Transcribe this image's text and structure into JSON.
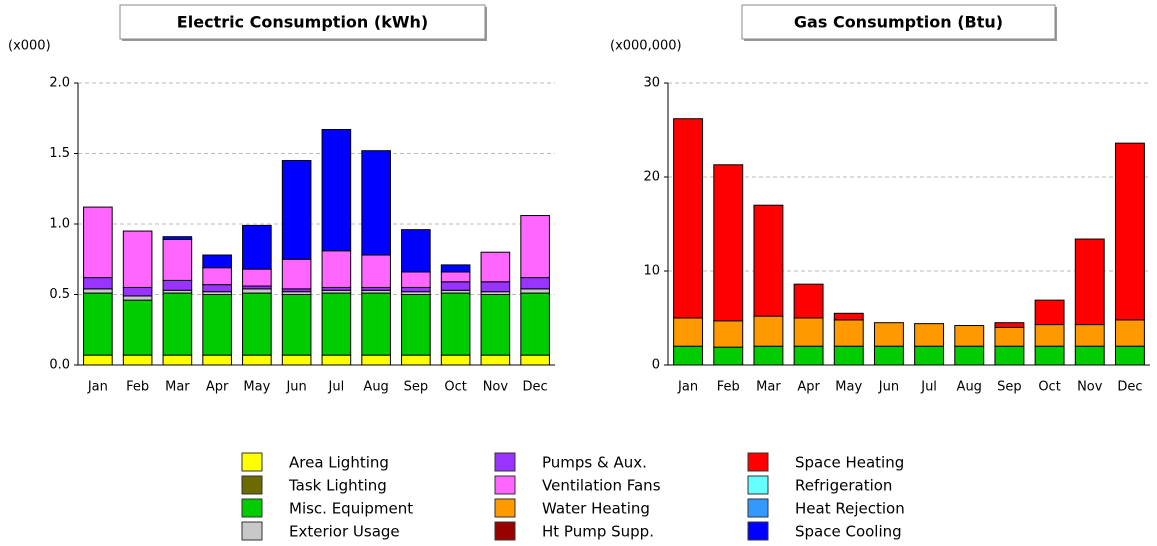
{
  "chart_data": [
    {
      "type": "bar",
      "stacked": true,
      "title": "Electric Consumption (kWh)",
      "unit_label": "(x000)",
      "categories": [
        "Jan",
        "Feb",
        "Mar",
        "Apr",
        "May",
        "Jun",
        "Jul",
        "Aug",
        "Sep",
        "Oct",
        "Nov",
        "Dec"
      ],
      "ylim": [
        0,
        2
      ],
      "yticks": [
        {
          "value": 0,
          "label": "0.0"
        },
        0.5,
        {
          "value": 1,
          "label": "1.0"
        },
        1.5,
        {
          "value": 2,
          "label": "2.0"
        }
      ],
      "grid": true,
      "series": [
        {
          "name": "Area Lighting",
          "values": [
            0.07,
            0.07,
            0.07,
            0.07,
            0.07,
            0.07,
            0.07,
            0.07,
            0.07,
            0.07,
            0.07,
            0.07
          ]
        },
        {
          "name": "Misc. Equipment",
          "values": [
            0.44,
            0.39,
            0.44,
            0.43,
            0.44,
            0.43,
            0.44,
            0.44,
            0.43,
            0.44,
            0.43,
            0.44
          ]
        },
        {
          "name": "Exterior Usage",
          "values": [
            0.03,
            0.03,
            0.02,
            0.02,
            0.03,
            0.02,
            0.02,
            0.02,
            0.02,
            0.02,
            0.02,
            0.03
          ]
        },
        {
          "name": "Pumps & Aux.",
          "values": [
            0.08,
            0.06,
            0.07,
            0.05,
            0.02,
            0.02,
            0.02,
            0.02,
            0.03,
            0.06,
            0.07,
            0.08
          ]
        },
        {
          "name": "Ventilation Fans",
          "values": [
            0.5,
            0.4,
            0.29,
            0.12,
            0.12,
            0.21,
            0.26,
            0.23,
            0.11,
            0.07,
            0.21,
            0.44
          ]
        },
        {
          "name": "Space Cooling",
          "values": [
            0,
            0,
            0.02,
            0.09,
            0.31,
            0.7,
            0.86,
            0.74,
            0.3,
            0.05,
            0,
            0
          ]
        }
      ]
    },
    {
      "type": "bar",
      "stacked": true,
      "title": "Gas Consumption (Btu)",
      "unit_label": "(x000,000)",
      "categories": [
        "Jan",
        "Feb",
        "Mar",
        "Apr",
        "May",
        "Jun",
        "Jul",
        "Aug",
        "Sep",
        "Oct",
        "Nov",
        "Dec"
      ],
      "ylim": [
        0,
        30
      ],
      "yticks": [
        0,
        10,
        20,
        30
      ],
      "grid": true,
      "series": [
        {
          "name": "Misc. Equipment",
          "values": [
            2.0,
            1.9,
            2.0,
            2.0,
            2.0,
            2.0,
            2.0,
            2.0,
            2.0,
            2.0,
            2.0,
            2.0
          ]
        },
        {
          "name": "Water Heating",
          "values": [
            3.0,
            2.8,
            3.2,
            3.0,
            2.8,
            2.5,
            2.4,
            2.2,
            2.0,
            2.3,
            2.3,
            2.8
          ]
        },
        {
          "name": "Space Heating",
          "values": [
            21.2,
            16.6,
            11.8,
            3.6,
            0.7,
            0,
            0,
            0,
            0.5,
            2.6,
            9.1,
            18.8
          ]
        }
      ]
    }
  ],
  "legend": [
    {
      "name": "Area Lighting",
      "color": "#ffff00"
    },
    {
      "name": "Task Lighting",
      "color": "#6b6b00"
    },
    {
      "name": "Misc. Equipment",
      "color": "#00cc00"
    },
    {
      "name": "Exterior Usage",
      "color": "#c8c8c8"
    },
    {
      "name": "Pumps & Aux.",
      "color": "#9933ff"
    },
    {
      "name": "Ventilation Fans",
      "color": "#ff66ff"
    },
    {
      "name": "Water Heating",
      "color": "#ff9900"
    },
    {
      "name": "Ht Pump Supp.",
      "color": "#990000"
    },
    {
      "name": "Space Heating",
      "color": "#ff0000"
    },
    {
      "name": "Refrigeration",
      "color": "#66ffff"
    },
    {
      "name": "Heat Rejection",
      "color": "#3399ff"
    },
    {
      "name": "Space Cooling",
      "color": "#0000ff"
    }
  ]
}
